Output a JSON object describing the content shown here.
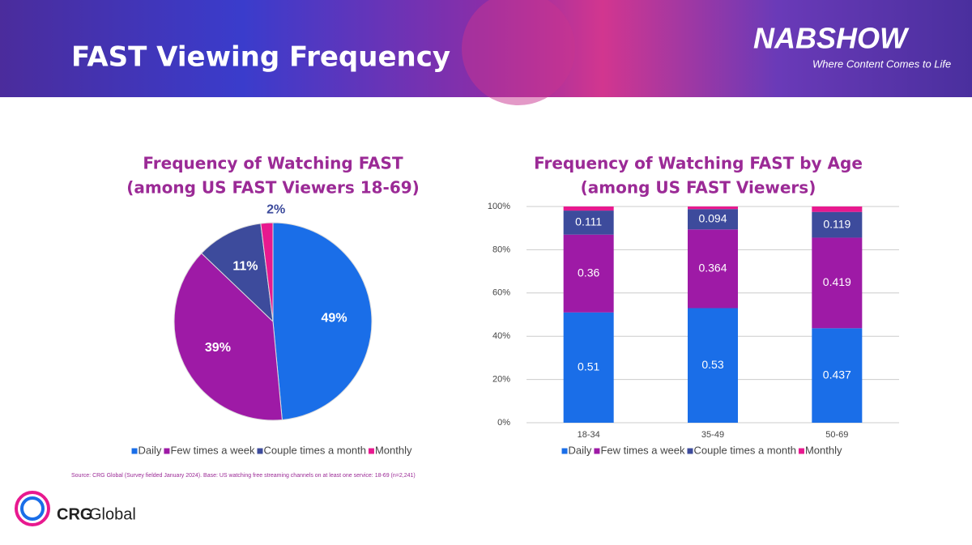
{
  "header": {
    "title": "FAST Viewing Frequency"
  },
  "logos": {
    "nab": "NABSHOW",
    "nab_tagline": "Where Content Comes to Life",
    "crg_bold": "CRG",
    "crg_light": "Global"
  },
  "source": "Source: CRG Global (Survey fielded January 2024). Base: US watching free streaming channels on at least one service: 18-69 (n=2,241)",
  "chart_data": [
    {
      "type": "pie",
      "title": [
        "Frequency of Watching FAST",
        "(among US FAST Viewers 18-69)"
      ],
      "categories": [
        "Daily",
        "Few times a week",
        "Couple times a month",
        "Monthly"
      ],
      "values": [
        49,
        39,
        11,
        2
      ],
      "value_labels": [
        "49%",
        "39%",
        "11%",
        "2%"
      ],
      "colors": [
        "#1a6ee8",
        "#9e1aa6",
        "#3d4b9c",
        "#e8198f"
      ],
      "legend": "bottom"
    },
    {
      "type": "bar",
      "stacked": true,
      "title": [
        "Frequency of Watching FAST by Age",
        "(among US FAST Viewers)"
      ],
      "categories": [
        "18-34",
        "35-49",
        "50-69"
      ],
      "series": [
        {
          "name": "Daily",
          "color": "#1a6ee8",
          "values": [
            0.51,
            0.53,
            0.437
          ]
        },
        {
          "name": "Few times a week",
          "color": "#9e1aa6",
          "values": [
            0.36,
            0.364,
            0.419
          ]
        },
        {
          "name": "Couple times a month",
          "color": "#3d4b9c",
          "values": [
            0.111,
            0.094,
            0.119
          ]
        },
        {
          "name": "Monthly",
          "color": "#e8198f",
          "values": [
            0.019,
            0.012,
            0.025
          ]
        }
      ],
      "ylim": [
        0,
        1
      ],
      "yticks": [
        {
          "value": 0,
          "label": "0%"
        },
        {
          "value": 0.2,
          "label": "20%"
        },
        {
          "value": 0.4,
          "label": "40%"
        },
        {
          "value": 0.6,
          "label": "60%"
        },
        {
          "value": 0.8,
          "label": "80%"
        },
        {
          "value": 1,
          "label": "100%"
        }
      ],
      "grid": true,
      "legend": "bottom"
    }
  ]
}
